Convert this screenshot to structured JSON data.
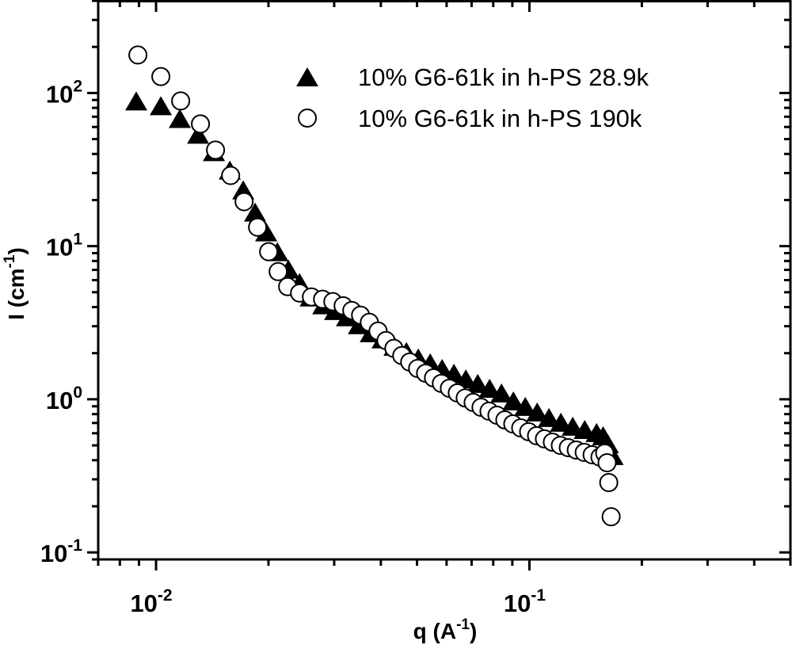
{
  "chart_data": {
    "type": "scatter",
    "title": "",
    "xlabel": {
      "base": "q (A",
      "sup": "-1",
      "tail": ")"
    },
    "ylabel": {
      "base": "I (cm",
      "sup": "-1",
      "tail": ")"
    },
    "xscale": "log",
    "yscale": "log",
    "xlim": [
      0.007,
      0.5
    ],
    "ylim": [
      0.09,
      400
    ],
    "grid": false,
    "legend_position": "top-right",
    "x_ticks": [
      {
        "value": 0.01,
        "base": "10",
        "sup": "-2"
      },
      {
        "value": 0.1,
        "base": "10",
        "sup": "-1"
      }
    ],
    "y_ticks": [
      {
        "value": 0.1,
        "base": "10",
        "sup": "-1"
      },
      {
        "value": 1,
        "base": "10",
        "sup": "0"
      },
      {
        "value": 10,
        "base": "10",
        "sup": "1"
      },
      {
        "value": 100,
        "base": "10",
        "sup": "2"
      }
    ],
    "series": [
      {
        "name": "10% G6-61k in h-PS 28.9k",
        "marker": "filled-triangle",
        "color": "#000000",
        "x": [
          0.00885,
          0.0103,
          0.01158,
          0.01296,
          0.01429,
          0.01576,
          0.01712,
          0.01842,
          0.01972,
          0.02113,
          0.02262,
          0.02423,
          0.02595,
          0.02804,
          0.03017,
          0.03246,
          0.03493,
          0.03759,
          0.04044,
          0.04352,
          0.04683,
          0.05039,
          0.05423,
          0.05835,
          0.06278,
          0.06756,
          0.0727,
          0.07823,
          0.08418,
          0.09058,
          0.09747,
          0.1049,
          0.1128,
          0.1214,
          0.1306,
          0.1406,
          0.1513,
          0.1575,
          0.1622,
          0.167
        ],
        "y": [
          88.7,
          82.6,
          68.2,
          53.8,
          41.4,
          31.4,
          23.3,
          16.7,
          12.4,
          9.2,
          7.08,
          5.78,
          4.66,
          4.14,
          3.8,
          3.46,
          3.07,
          2.72,
          2.48,
          2.22,
          2.05,
          1.86,
          1.73,
          1.59,
          1.48,
          1.36,
          1.27,
          1.18,
          1.1,
          0.977,
          0.898,
          0.826,
          0.76,
          0.708,
          0.667,
          0.635,
          0.606,
          0.578,
          0.513,
          0.429
        ]
      },
      {
        "name": "10% G6-61k in h-PS 190k",
        "marker": "open-circle",
        "color": "#000000",
        "x": [
          0.00894,
          0.0103,
          0.01164,
          0.01315,
          0.01443,
          0.01584,
          0.01721,
          0.0187,
          0.02002,
          0.02123,
          0.02251,
          0.02423,
          0.02607,
          0.02792,
          0.02975,
          0.0317,
          0.03344,
          0.0353,
          0.03726,
          0.03932,
          0.04129,
          0.04335,
          0.04551,
          0.04779,
          0.05018,
          0.0527,
          0.05534,
          0.05811,
          0.06103,
          0.06409,
          0.0673,
          0.07067,
          0.0742,
          0.07793,
          0.08185,
          0.08594,
          0.09024,
          0.09476,
          0.09952,
          0.1045,
          0.1097,
          0.1152,
          0.121,
          0.1271,
          0.1335,
          0.1402,
          0.1472,
          0.1545,
          0.1591,
          0.1614,
          0.1631,
          0.1655
        ],
        "y": [
          177,
          128,
          88.7,
          62.8,
          42.4,
          28.9,
          19.5,
          13.3,
          9.2,
          6.82,
          5.44,
          4.94,
          4.66,
          4.5,
          4.34,
          4.08,
          3.8,
          3.54,
          3.18,
          2.79,
          2.42,
          2.15,
          1.93,
          1.75,
          1.59,
          1.48,
          1.38,
          1.27,
          1.18,
          1.1,
          1.02,
          0.953,
          0.887,
          0.836,
          0.787,
          0.733,
          0.69,
          0.65,
          0.614,
          0.578,
          0.551,
          0.525,
          0.5,
          0.483,
          0.466,
          0.45,
          0.434,
          0.419,
          0.445,
          0.385,
          0.286,
          0.171
        ]
      }
    ]
  }
}
